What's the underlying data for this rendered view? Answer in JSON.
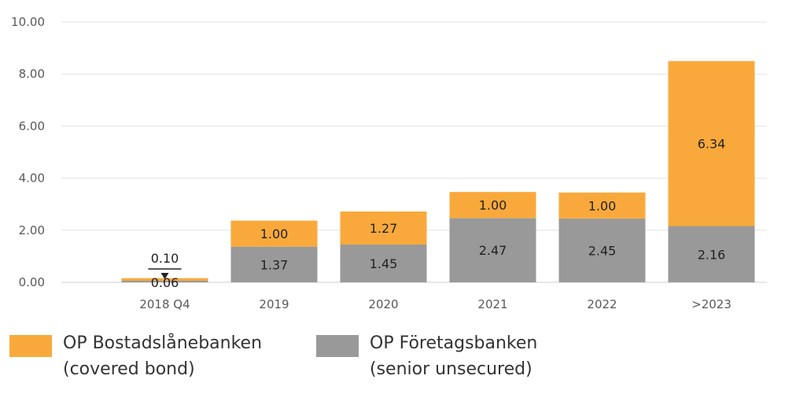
{
  "chart_data": {
    "type": "bar",
    "stacked": true,
    "title": "",
    "xlabel": "",
    "ylabel": "",
    "ylim": [
      0,
      10
    ],
    "yticks": [
      0,
      2,
      4,
      6,
      8,
      10
    ],
    "ytick_labels": [
      "0.00",
      "2.00",
      "4.00",
      "6.00",
      "8.00",
      "10.00"
    ],
    "categories": [
      "2018 Q4",
      "2019",
      "2020",
      "2021",
      "2022",
      ">2023"
    ],
    "grid": true,
    "legend_position": "bottom",
    "series": [
      {
        "name": "OP Företagsbanken (senior unsecured)",
        "legend_lines": [
          "OP Företagsbanken",
          "(senior unsecured)"
        ],
        "color": "#999999",
        "values": [
          0.06,
          1.37,
          1.45,
          2.47,
          2.45,
          2.16
        ],
        "labels": [
          "0.06",
          "1.37",
          "1.45",
          "2.47",
          "2.45",
          "2.16"
        ]
      },
      {
        "name": "OP Bostadslånebanken (covered bond)",
        "legend_lines": [
          "OP Bostadslånebanken",
          "(covered bond)"
        ],
        "color": "#F9A93B",
        "values": [
          0.1,
          1.0,
          1.27,
          1.0,
          1.0,
          6.34
        ],
        "labels": [
          "0.10",
          "1.00",
          "1.27",
          "1.00",
          "1.00",
          "6.34"
        ]
      }
    ],
    "legend_order": [
      1,
      0
    ]
  }
}
